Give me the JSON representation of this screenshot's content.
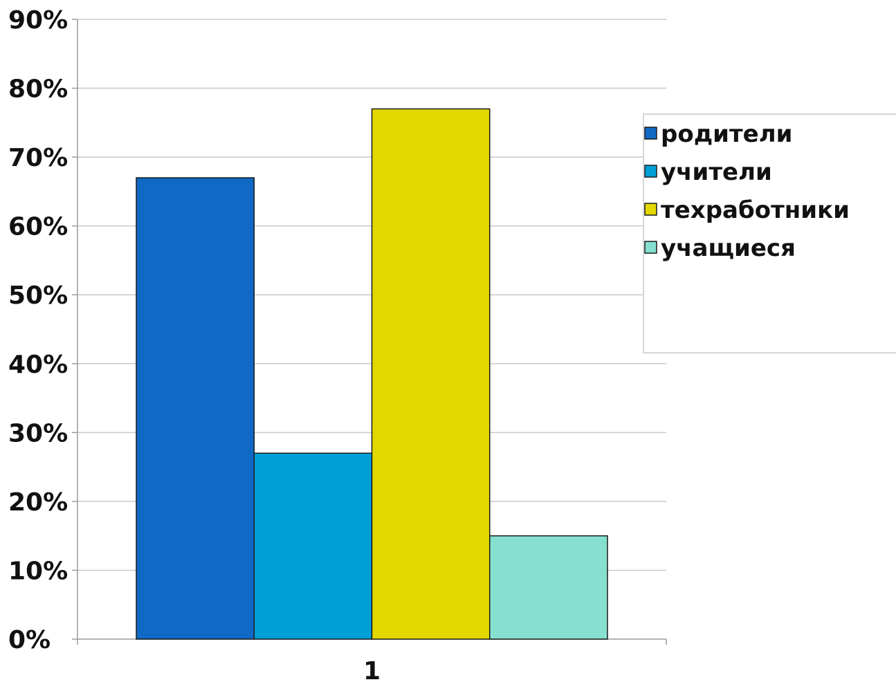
{
  "chart_data": {
    "type": "bar",
    "categories": [
      "1"
    ],
    "series": [
      {
        "name": "родители",
        "values": [
          67
        ],
        "color": "#1069c4"
      },
      {
        "name": "учители",
        "values": [
          27
        ],
        "color": "#009fd6"
      },
      {
        "name": "техработники",
        "values": [
          77
        ],
        "color": "#e2d800"
      },
      {
        "name": "учащиеся",
        "values": [
          15
        ],
        "color": "#86e0d0"
      }
    ],
    "y_ticks": [
      "0%",
      "10%",
      "20%",
      "30%",
      "40%",
      "50%",
      "60%",
      "70%",
      "80%",
      "90%"
    ],
    "ylim": [
      0,
      90
    ],
    "y_unit": "%",
    "grid": true,
    "legend_position": "right"
  }
}
